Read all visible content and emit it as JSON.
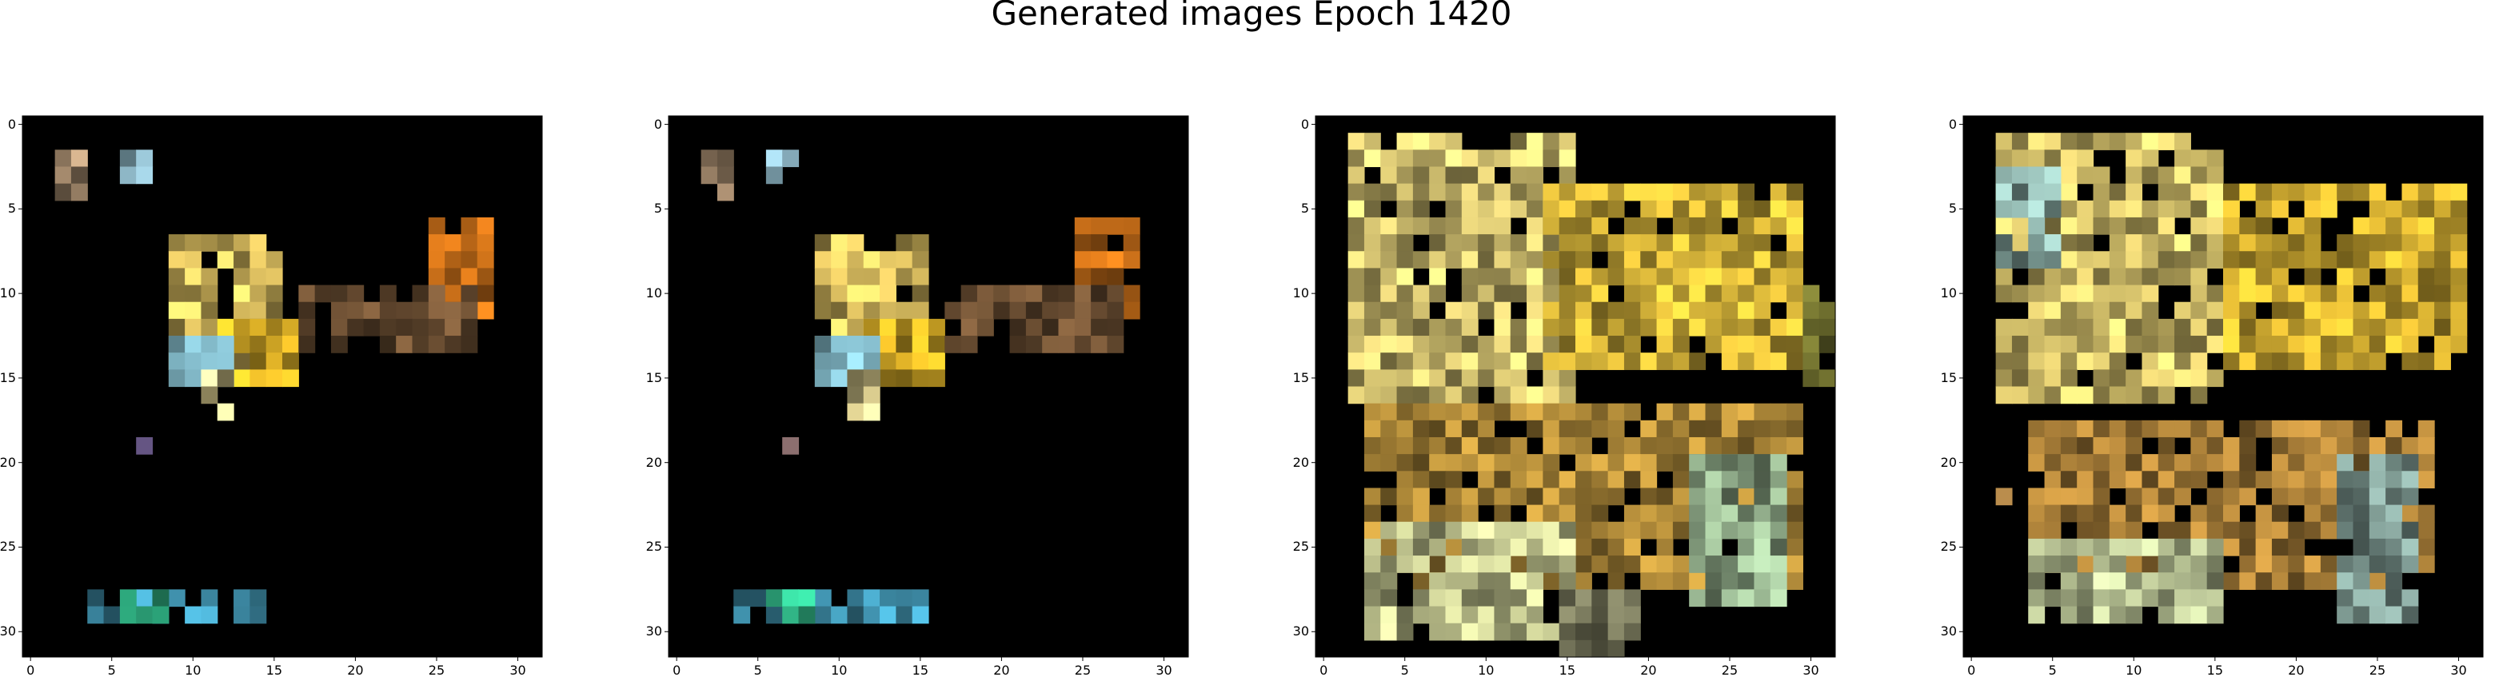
{
  "figure": {
    "title": "Generated images Epoch 1420",
    "x_ticks": [
      0,
      5,
      10,
      15,
      20,
      25,
      30
    ],
    "y_ticks": [
      0,
      5,
      10,
      15,
      20,
      25,
      30
    ],
    "grid_size": 32
  },
  "panels": [
    {
      "name": "image-1",
      "blobs": [
        {
          "r": [
            7,
            14
          ],
          "c": [
            9,
            15
          ],
          "color": "#f2d26a"
        },
        {
          "r": [
            12,
            15
          ],
          "c": [
            12,
            16
          ],
          "color": "#f3c22b"
        },
        {
          "r": [
            13,
            15
          ],
          "c": [
            9,
            12
          ],
          "color": "#8dc8d8"
        },
        {
          "r": [
            15,
            17
          ],
          "c": [
            11,
            12
          ],
          "color": "#f5e6a0"
        },
        {
          "r": [
            6,
            11
          ],
          "c": [
            25,
            28
          ],
          "color": "#e07c1c"
        },
        {
          "r": [
            10,
            13
          ],
          "c": [
            17,
            27
          ],
          "color": "#7b5a3a"
        },
        {
          "r": [
            2,
            4
          ],
          "c": [
            2,
            3
          ],
          "color": "#b89a7a"
        },
        {
          "r": [
            2,
            3
          ],
          "c": [
            6,
            7
          ],
          "color": "#a8d8ea"
        },
        {
          "r": [
            28,
            29
          ],
          "c": [
            4,
            14
          ],
          "color": "#4aa8c8"
        },
        {
          "r": [
            28,
            29
          ],
          "c": [
            6,
            8
          ],
          "color": "#38d09a"
        },
        {
          "r": [
            19,
            19
          ],
          "c": [
            7,
            7
          ],
          "color": "#6b5a8a"
        }
      ]
    },
    {
      "name": "image-2",
      "blobs": [
        {
          "r": [
            7,
            14
          ],
          "c": [
            9,
            15
          ],
          "color": "#f2d26a"
        },
        {
          "r": [
            12,
            15
          ],
          "c": [
            12,
            16
          ],
          "color": "#f3c22b"
        },
        {
          "r": [
            13,
            15
          ],
          "c": [
            9,
            12
          ],
          "color": "#8dc8d8"
        },
        {
          "r": [
            15,
            17
          ],
          "c": [
            11,
            12
          ],
          "color": "#f5e6a0"
        },
        {
          "r": [
            6,
            11
          ],
          "c": [
            25,
            28
          ],
          "color": "#e07c1c"
        },
        {
          "r": [
            10,
            13
          ],
          "c": [
            17,
            27
          ],
          "color": "#7b5a3a"
        },
        {
          "r": [
            2,
            4
          ],
          "c": [
            2,
            3
          ],
          "color": "#b89a7a"
        },
        {
          "r": [
            2,
            3
          ],
          "c": [
            6,
            7
          ],
          "color": "#a8d8ea"
        },
        {
          "r": [
            28,
            29
          ],
          "c": [
            4,
            15
          ],
          "color": "#4aa8c8"
        },
        {
          "r": [
            28,
            29
          ],
          "c": [
            6,
            8
          ],
          "color": "#38d09a"
        },
        {
          "r": [
            19,
            19
          ],
          "c": [
            7,
            7
          ],
          "color": "#9a7a7a"
        }
      ]
    },
    {
      "name": "image-3",
      "blobs": [
        {
          "r": [
            1,
            16
          ],
          "c": [
            2,
            15
          ],
          "color": "#f0dc80"
        },
        {
          "r": [
            4,
            14
          ],
          "c": [
            14,
            29
          ],
          "color": "#eec840"
        },
        {
          "r": [
            17,
            27
          ],
          "c": [
            3,
            29
          ],
          "color": "#c49a40"
        },
        {
          "r": [
            24,
            30
          ],
          "c": [
            3,
            15
          ],
          "color": "#d8dca0"
        },
        {
          "r": [
            20,
            28
          ],
          "c": [
            23,
            28
          ],
          "color": "#a8c8a0"
        },
        {
          "r": [
            28,
            31
          ],
          "c": [
            15,
            19
          ],
          "color": "#8a8a6a"
        },
        {
          "r": [
            10,
            15
          ],
          "c": [
            30,
            31
          ],
          "color": "#8a8a3a"
        }
      ]
    },
    {
      "name": "image-4",
      "blobs": [
        {
          "r": [
            1,
            16
          ],
          "c": [
            2,
            15
          ],
          "color": "#eed878"
        },
        {
          "r": [
            4,
            14
          ],
          "c": [
            16,
            30
          ],
          "color": "#eec438"
        },
        {
          "r": [
            18,
            27
          ],
          "c": [
            4,
            28
          ],
          "color": "#c09040"
        },
        {
          "r": [
            25,
            29
          ],
          "c": [
            4,
            15
          ],
          "color": "#d0dca8"
        },
        {
          "r": [
            20,
            29
          ],
          "c": [
            23,
            27
          ],
          "color": "#8aa8a0"
        },
        {
          "r": [
            22,
            22
          ],
          "c": [
            2,
            2
          ],
          "color": "#e8b060"
        },
        {
          "r": [
            3,
            8
          ],
          "c": [
            2,
            5
          ],
          "color": "#a0c8c0"
        }
      ]
    }
  ]
}
